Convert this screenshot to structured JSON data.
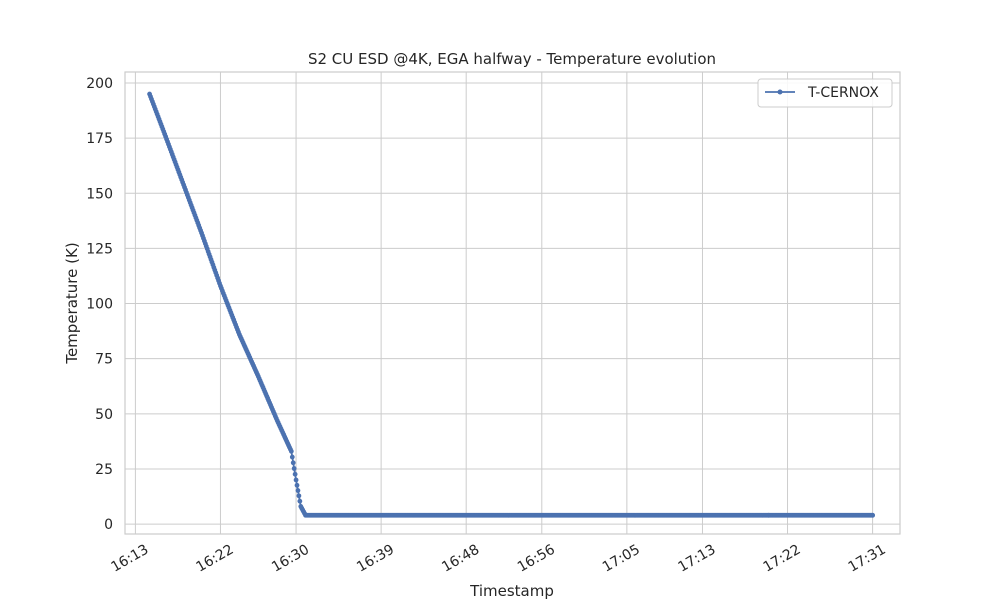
{
  "chart_data": {
    "type": "line",
    "title": "S2 CU ESD @4K, EGA halfway - Temperature evolution",
    "xlabel": "Timestamp",
    "ylabel": "Temperature (K)",
    "x_ticks": [
      "16:13",
      "16:22",
      "16:30",
      "16:39",
      "16:48",
      "16:56",
      "17:05",
      "17:13",
      "17:22",
      "17:31"
    ],
    "y_ticks": [
      0,
      25,
      50,
      75,
      100,
      125,
      150,
      175,
      200
    ],
    "ylim": [
      -4.5,
      205
    ],
    "xlim": [
      "16:11:54",
      "17:33:54"
    ],
    "grid": true,
    "legend_position": "top-right",
    "color": "#4c72b0",
    "series": [
      {
        "name": "T-CERNOX",
        "x": [
          "16:14:30",
          "16:16:00",
          "16:18:00",
          "16:20:00",
          "16:22:00",
          "16:24:00",
          "16:26:00",
          "16:28:00",
          "16:29:30",
          "16:30:00",
          "16:30:30",
          "16:31:00",
          "16:31:30",
          "16:40:00",
          "17:00:00",
          "17:20:00",
          "17:31:00"
        ],
        "y": [
          195,
          178,
          155,
          132,
          108,
          86,
          67,
          47,
          33,
          20,
          8,
          4,
          4,
          4,
          4,
          4,
          4
        ]
      }
    ]
  }
}
